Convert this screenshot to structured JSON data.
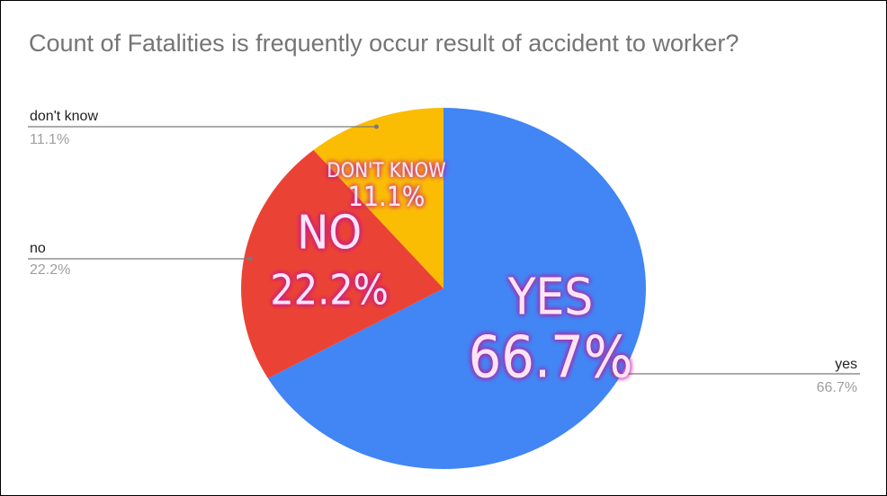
{
  "chart_data": {
    "type": "pie",
    "title": "Count of Fatalities is frequently occur result of accident to worker?",
    "categories": [
      "yes",
      "no",
      "don't know"
    ],
    "values": [
      66.7,
      22.2,
      11.1
    ],
    "percent_labels": [
      "66.7%",
      "22.2%",
      "11.1%"
    ],
    "slice_labels": [
      "YES",
      "NO",
      "DON'T KNOW"
    ],
    "colors": [
      "#4285f4",
      "#ea4335",
      "#fbbc04"
    ],
    "legend": "callouts"
  }
}
